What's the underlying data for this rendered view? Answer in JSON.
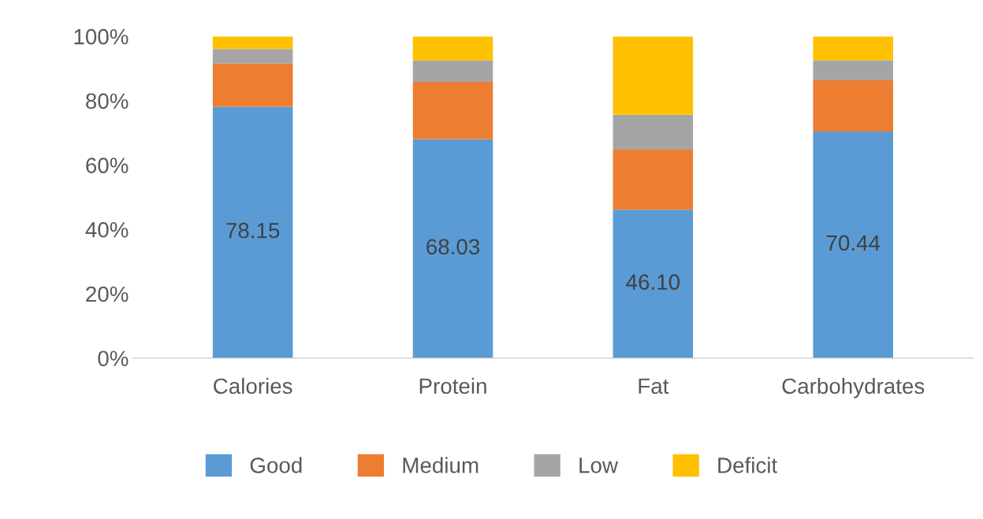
{
  "chart_data": {
    "type": "bar",
    "stacked": true,
    "categories": [
      "Calories",
      "Protein",
      "Fat",
      "Carbohydrates"
    ],
    "series": [
      {
        "name": "Good",
        "color": "#5b9bd5",
        "values": [
          78.15,
          68.03,
          46.1,
          70.44
        ],
        "value_labels": [
          "78.15",
          "68.03",
          "46.10",
          "70.44"
        ]
      },
      {
        "name": "Medium",
        "color": "#ed7d31",
        "values": [
          13.4,
          17.8,
          18.7,
          15.9
        ]
      },
      {
        "name": "Low",
        "color": "#a5a5a5",
        "values": [
          4.5,
          6.7,
          10.8,
          6.2
        ]
      },
      {
        "name": "Deficit",
        "color": "#ffc000",
        "values": [
          3.95,
          7.47,
          24.4,
          7.46
        ]
      }
    ],
    "ylim": [
      0,
      100
    ],
    "yticks": [
      {
        "value": 0,
        "label": "0%"
      },
      {
        "value": 20,
        "label": "20%"
      },
      {
        "value": 40,
        "label": "40%"
      },
      {
        "value": 60,
        "label": "60%"
      },
      {
        "value": 80,
        "label": "80%"
      },
      {
        "value": 100,
        "label": "100%"
      }
    ],
    "grid": false,
    "legend": "bottom"
  }
}
